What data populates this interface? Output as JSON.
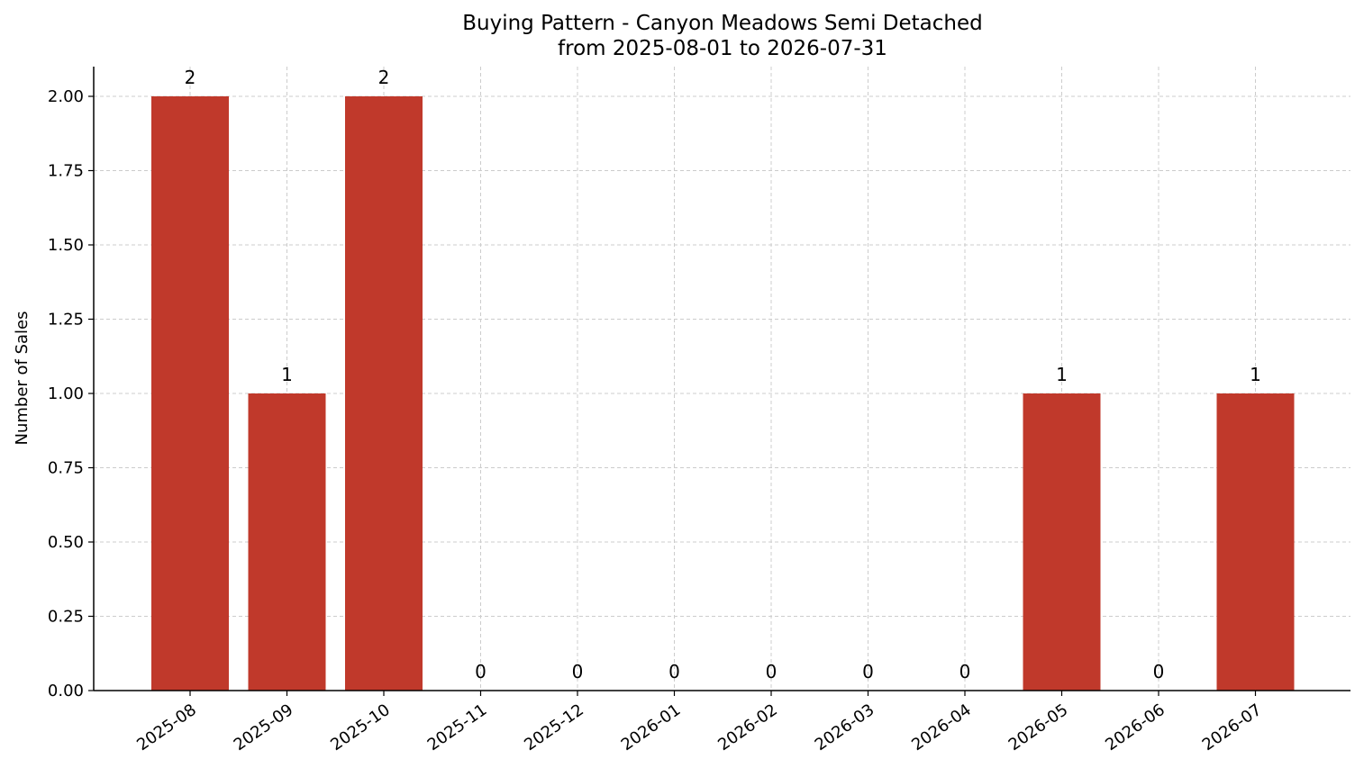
{
  "chart_data": {
    "type": "bar",
    "title": "Buying Pattern - Canyon Meadows Semi Detached",
    "subtitle": "from 2025-08-01 to 2026-07-31",
    "xlabel": "",
    "ylabel": "Number of Sales",
    "categories": [
      "2025-08",
      "2025-09",
      "2025-10",
      "2025-11",
      "2025-12",
      "2026-01",
      "2026-02",
      "2026-03",
      "2026-04",
      "2026-05",
      "2026-06",
      "2026-07"
    ],
    "values": [
      2,
      1,
      2,
      0,
      0,
      0,
      0,
      0,
      0,
      1,
      0,
      1
    ],
    "ylim": [
      0,
      2.1
    ],
    "yticks": [
      0,
      0.25,
      0.5,
      0.75,
      1.0,
      1.25,
      1.5,
      1.75,
      2.0
    ],
    "ytick_labels": [
      "0.00",
      "0.25",
      "0.50",
      "0.75",
      "1.00",
      "1.25",
      "1.50",
      "1.75",
      "2.00"
    ],
    "grid": true,
    "bar_color": "#c0392b"
  }
}
